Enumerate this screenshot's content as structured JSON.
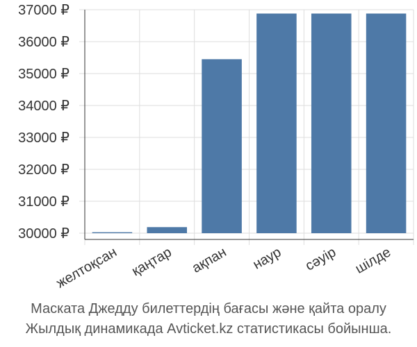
{
  "chart_data": {
    "type": "bar",
    "title": "",
    "xlabel": "",
    "ylabel": "",
    "categories": [
      "желтоқсан",
      "қаңтар",
      "ақпан",
      "наур",
      "сәуір",
      "шілде"
    ],
    "values": [
      30030,
      30190,
      35450,
      36880,
      36880,
      36880
    ],
    "y_ticks": [
      30000,
      31000,
      32000,
      33000,
      34000,
      35000,
      36000,
      37000
    ],
    "y_tick_labels": [
      "30000 ₽",
      "31000 ₽",
      "32000 ₽",
      "33000 ₽",
      "34000 ₽",
      "35000 ₽",
      "36000 ₽",
      "37000 ₽"
    ],
    "ylim": [
      29800,
      37100
    ],
    "grid": true,
    "legend": "none",
    "bar_color": "#4e79a7",
    "grid_color": "#dddddd",
    "axis_color": "#333333"
  },
  "caption": {
    "line1": "Маската Джедду билеттердің бағасы және қайта оралу",
    "line2": "Жылдық динамикада Avticket.kz статистикасы бойынша."
  }
}
